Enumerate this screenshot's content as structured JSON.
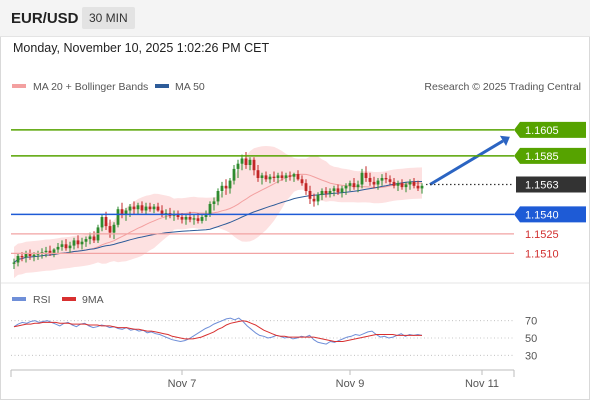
{
  "header": {
    "symbol": "EUR/USD",
    "timeframe": "30 MIN"
  },
  "datetime": "Monday, November 10, 2025 1:02:26 PM CET",
  "legend": {
    "bb": "MA 20 + Bollinger Bands",
    "ma50": "MA 50",
    "credit": "Research © 2025 Trading Central"
  },
  "rsi_legend": {
    "rsi": "RSI",
    "ma9": "9MA"
  },
  "colors": {
    "green": "#56a300",
    "blue": "#1e5bd6",
    "red": "#e8454d",
    "bull": "#2e8b2e",
    "bear": "#c22727",
    "band": "#fde1e1",
    "ma20": "#f3a0a0",
    "ma50": "#2e5c99",
    "rsi": "#6f8fd8",
    "rsi_ma": "#d83030"
  },
  "chart_data": {
    "type": "candlestick",
    "y_range": [
      1.1488,
      1.1628
    ],
    "levels": [
      {
        "value": "1.1605",
        "color": "green",
        "style": "resistance"
      },
      {
        "value": "1.1585",
        "color": "green",
        "style": "resistance"
      },
      {
        "value": "1.1563",
        "color": "dark",
        "style": "current"
      },
      {
        "value": "1.1540",
        "color": "blue",
        "style": "pivot"
      },
      {
        "value": "1.1525",
        "color": "red",
        "style": "support"
      },
      {
        "value": "1.1510",
        "color": "red",
        "style": "support"
      }
    ],
    "x_ticks": [
      {
        "label": "Nov 7",
        "index": 42
      },
      {
        "label": "Nov 9",
        "index": 84
      },
      {
        "label": "Nov 11",
        "index": 117
      }
    ],
    "candles": [
      [
        1.1502,
        1.1506,
        1.1498,
        1.1503
      ],
      [
        1.1503,
        1.151,
        1.15,
        1.1508
      ],
      [
        1.1508,
        1.1511,
        1.1504,
        1.1507
      ],
      [
        1.1507,
        1.1512,
        1.1503,
        1.151
      ],
      [
        1.151,
        1.1513,
        1.1505,
        1.1508
      ],
      [
        1.1508,
        1.1511,
        1.1504,
        1.1509
      ],
      [
        1.1509,
        1.1512,
        1.1505,
        1.151
      ],
      [
        1.151,
        1.1514,
        1.1506,
        1.1511
      ],
      [
        1.1511,
        1.1515,
        1.1507,
        1.1512
      ],
      [
        1.1512,
        1.1516,
        1.1508,
        1.151
      ],
      [
        1.151,
        1.1514,
        1.1507,
        1.1513
      ],
      [
        1.1513,
        1.1518,
        1.151,
        1.1515
      ],
      [
        1.1515,
        1.152,
        1.1512,
        1.1517
      ],
      [
        1.1517,
        1.1521,
        1.1512,
        1.1514
      ],
      [
        1.1514,
        1.1519,
        1.151,
        1.1516
      ],
      [
        1.1516,
        1.1522,
        1.1513,
        1.152
      ],
      [
        1.152,
        1.1524,
        1.1514,
        1.1517
      ],
      [
        1.1517,
        1.1522,
        1.1513,
        1.1519
      ],
      [
        1.1519,
        1.1523,
        1.1515,
        1.1521
      ],
      [
        1.1521,
        1.1526,
        1.1517,
        1.1523
      ],
      [
        1.1523,
        1.1527,
        1.1518,
        1.152
      ],
      [
        1.152,
        1.1532,
        1.1518,
        1.153
      ],
      [
        1.153,
        1.154,
        1.1527,
        1.1538
      ],
      [
        1.1538,
        1.1542,
        1.1528,
        1.1531
      ],
      [
        1.1531,
        1.1536,
        1.1522,
        1.1526
      ],
      [
        1.1526,
        1.1534,
        1.1521,
        1.1532
      ],
      [
        1.1532,
        1.1546,
        1.153,
        1.1544
      ],
      [
        1.1544,
        1.1549,
        1.1537,
        1.154
      ],
      [
        1.154,
        1.1545,
        1.1535,
        1.1543
      ],
      [
        1.1543,
        1.1548,
        1.1538,
        1.1546
      ],
      [
        1.1546,
        1.155,
        1.154,
        1.1544
      ],
      [
        1.1544,
        1.1549,
        1.154,
        1.1547
      ],
      [
        1.1547,
        1.155,
        1.1541,
        1.1543
      ],
      [
        1.1543,
        1.1549,
        1.154,
        1.1546
      ],
      [
        1.1546,
        1.1549,
        1.1542,
        1.1544
      ],
      [
        1.1544,
        1.1548,
        1.1541,
        1.1546
      ],
      [
        1.1546,
        1.1549,
        1.1542,
        1.1543
      ],
      [
        1.1543,
        1.1547,
        1.1538,
        1.154
      ],
      [
        1.154,
        1.1544,
        1.1536,
        1.1541
      ],
      [
        1.1541,
        1.1545,
        1.1537,
        1.1539
      ],
      [
        1.1539,
        1.1543,
        1.1535,
        1.154
      ],
      [
        1.154,
        1.1543,
        1.1536,
        1.1538
      ],
      [
        1.1538,
        1.1541,
        1.1533,
        1.1536
      ],
      [
        1.1536,
        1.154,
        1.1532,
        1.1538
      ],
      [
        1.1538,
        1.1542,
        1.1534,
        1.1536
      ],
      [
        1.1536,
        1.154,
        1.1532,
        1.1537
      ],
      [
        1.1537,
        1.1541,
        1.1533,
        1.1535
      ],
      [
        1.1535,
        1.154,
        1.1533,
        1.1538
      ],
      [
        1.1538,
        1.1543,
        1.1535,
        1.154
      ],
      [
        1.154,
        1.155,
        1.1538,
        1.1548
      ],
      [
        1.1548,
        1.1553,
        1.1543,
        1.155
      ],
      [
        1.155,
        1.156,
        1.1547,
        1.1558
      ],
      [
        1.1558,
        1.1565,
        1.1553,
        1.1562
      ],
      [
        1.1562,
        1.1567,
        1.1555,
        1.156
      ],
      [
        1.156,
        1.1568,
        1.1556,
        1.1566
      ],
      [
        1.1566,
        1.1578,
        1.1563,
        1.1575
      ],
      [
        1.1575,
        1.1582,
        1.1568,
        1.1579
      ],
      [
        1.1579,
        1.1586,
        1.1574,
        1.1583
      ],
      [
        1.1583,
        1.1588,
        1.1575,
        1.1578
      ],
      [
        1.1578,
        1.1584,
        1.1574,
        1.1582
      ],
      [
        1.1582,
        1.1584,
        1.157,
        1.1574
      ],
      [
        1.1574,
        1.1578,
        1.1565,
        1.1568
      ],
      [
        1.1568,
        1.1572,
        1.1563,
        1.157
      ],
      [
        1.157,
        1.1573,
        1.1565,
        1.1567
      ],
      [
        1.1567,
        1.1571,
        1.1564,
        1.1569
      ],
      [
        1.1569,
        1.1573,
        1.1565,
        1.1568
      ],
      [
        1.1568,
        1.1572,
        1.1564,
        1.157
      ],
      [
        1.157,
        1.1573,
        1.1566,
        1.1568
      ],
      [
        1.1568,
        1.1572,
        1.1565,
        1.157
      ],
      [
        1.157,
        1.1573,
        1.1566,
        1.1569
      ],
      [
        1.1569,
        1.1572,
        1.1565,
        1.1571
      ],
      [
        1.1571,
        1.1574,
        1.1566,
        1.1567
      ],
      [
        1.1567,
        1.157,
        1.1562,
        1.1564
      ],
      [
        1.1564,
        1.1567,
        1.1555,
        1.1558
      ],
      [
        1.1558,
        1.1562,
        1.1548,
        1.1552
      ],
      [
        1.1552,
        1.1556,
        1.1546,
        1.155
      ],
      [
        1.155,
        1.1557,
        1.1547,
        1.1555
      ],
      [
        1.1555,
        1.156,
        1.1551,
        1.1558
      ],
      [
        1.1558,
        1.1561,
        1.1553,
        1.1556
      ],
      [
        1.1556,
        1.156,
        1.1553,
        1.1558
      ],
      [
        1.1558,
        1.1562,
        1.1554,
        1.156
      ],
      [
        1.156,
        1.1563,
        1.1555,
        1.1557
      ],
      [
        1.1557,
        1.1562,
        1.1553,
        1.156
      ],
      [
        1.156,
        1.1564,
        1.1555,
        1.1562
      ],
      [
        1.1562,
        1.1566,
        1.1558,
        1.1564
      ],
      [
        1.1564,
        1.1568,
        1.1559,
        1.1561
      ],
      [
        1.1561,
        1.1566,
        1.1557,
        1.1563
      ],
      [
        1.1563,
        1.1575,
        1.156,
        1.1572
      ],
      [
        1.1572,
        1.1577,
        1.1565,
        1.1568
      ],
      [
        1.1568,
        1.1572,
        1.1562,
        1.1565
      ],
      [
        1.1565,
        1.1569,
        1.156,
        1.1563
      ],
      [
        1.1563,
        1.1568,
        1.1559,
        1.1566
      ],
      [
        1.1566,
        1.1571,
        1.1562,
        1.1568
      ],
      [
        1.1568,
        1.1572,
        1.1564,
        1.1567
      ],
      [
        1.1567,
        1.157,
        1.1563,
        1.1565
      ],
      [
        1.1565,
        1.1568,
        1.156,
        1.1562
      ],
      [
        1.1562,
        1.1566,
        1.1558,
        1.1564
      ],
      [
        1.1564,
        1.1567,
        1.1559,
        1.1561
      ],
      [
        1.1561,
        1.1565,
        1.1557,
        1.1563
      ],
      [
        1.1563,
        1.1567,
        1.1559,
        1.1565
      ],
      [
        1.1565,
        1.1568,
        1.156,
        1.1562
      ],
      [
        1.1562,
        1.1566,
        1.1558,
        1.156
      ],
      [
        1.156,
        1.1564,
        1.1556,
        1.1562
      ]
    ],
    "rsi": {
      "values": [
        63,
        66,
        68,
        67,
        69,
        70,
        68,
        69,
        70,
        68,
        66,
        64,
        67,
        68,
        65,
        63,
        66,
        67,
        64,
        62,
        63,
        65,
        64,
        62,
        63,
        61,
        60,
        62,
        59,
        60,
        58,
        59,
        56,
        57,
        55,
        54,
        52,
        50,
        48,
        47,
        46,
        47,
        49,
        52,
        55,
        58,
        61,
        63,
        66,
        68,
        70,
        72,
        73,
        71,
        73,
        69,
        64,
        60,
        56,
        53,
        52,
        50,
        51,
        53,
        52,
        50,
        51,
        49,
        50,
        52,
        51,
        53,
        48,
        45,
        44,
        43,
        46,
        45,
        47,
        49,
        51,
        52,
        54,
        53,
        55,
        57,
        58,
        54,
        51,
        52,
        50,
        51,
        53,
        55,
        52,
        54,
        53,
        54,
        53
      ],
      "ma9": [
        63,
        64,
        65,
        66,
        66,
        67,
        67,
        68,
        68,
        68,
        68,
        67,
        67,
        67,
        66,
        66,
        66,
        66,
        65,
        65,
        65,
        64,
        64,
        64,
        63,
        62,
        62,
        62,
        61,
        60,
        60,
        59,
        58,
        58,
        57,
        56,
        55,
        54,
        52,
        51,
        50,
        49,
        49,
        49,
        50,
        51,
        53,
        55,
        57,
        60,
        62,
        65,
        67,
        68,
        69,
        70,
        69,
        67,
        65,
        62,
        59,
        57,
        55,
        53,
        52,
        52,
        51,
        51,
        51,
        51,
        51,
        51,
        51,
        50,
        49,
        48,
        47,
        46,
        46,
        46,
        47,
        48,
        49,
        50,
        51,
        52,
        53,
        54,
        54,
        54,
        54,
        54,
        53,
        53,
        53,
        53,
        53,
        53,
        53
      ],
      "ticks": [
        "70",
        "50",
        "30"
      ]
    }
  }
}
